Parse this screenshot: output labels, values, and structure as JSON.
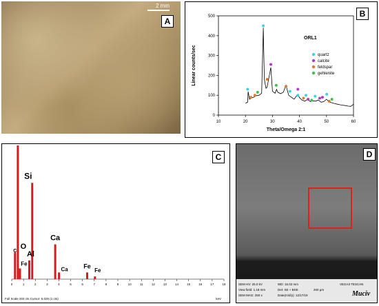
{
  "panels": {
    "a": {
      "label": "A",
      "scale_bar": "2 mm"
    },
    "b": {
      "label": "B",
      "sample": "ORL1"
    },
    "c": {
      "label": "C",
      "footer": "Full Scale 203 cts Cursor: 5.025 (1 cts)",
      "unit": "keV"
    },
    "d": {
      "label": "D",
      "info": {
        "hv": "SEM HV: 25.0 kV",
        "wd": "WD: 16.02 mm",
        "vega": "VEGA3 TESCAN",
        "view": "View field: 1.18 mm",
        "det": "Det: SE + BSE",
        "scale": "200 µm",
        "mag": "SEM MAG: 250 x",
        "date": "Date(m/d/y): 12/17/19",
        "logo": "Muciv"
      }
    }
  },
  "chart_data": [
    {
      "type": "line",
      "title": "ORL1",
      "xlabel": "Theta/Omega 2:1",
      "ylabel": "Linear counts/sec",
      "xlim": [
        10,
        60
      ],
      "ylim": [
        0,
        500
      ],
      "xticks": [
        10,
        20,
        30,
        40,
        50,
        60
      ],
      "yticks": [
        0,
        100,
        200,
        300,
        400,
        500
      ],
      "legend_position": "right",
      "legend": [
        {
          "name": "quartz",
          "color": "#39d5e0"
        },
        {
          "name": "calcite",
          "color": "#b23ac8"
        },
        {
          "name": "feldspar",
          "color": "#e07a2a"
        },
        {
          "name": "gehlenite",
          "color": "#3fbf4f"
        }
      ],
      "series": [
        {
          "x": [
            20,
            20.8,
            21,
            21.5,
            22,
            23,
            24,
            25,
            26,
            26.6,
            27,
            27.6,
            28,
            29.4,
            30,
            31,
            31.5,
            32,
            33,
            34,
            35,
            35.5,
            36,
            37,
            38,
            39.4,
            40,
            41,
            42,
            43,
            44,
            45,
            46,
            47,
            48,
            49,
            50,
            51,
            52,
            53,
            54,
            55,
            56,
            57,
            58,
            59,
            60
          ],
          "y": [
            60,
            65,
            118,
            80,
            85,
            90,
            98,
            100,
            110,
            440,
            180,
            135,
            140,
            240,
            120,
            110,
            130,
            115,
            108,
            115,
            150,
            125,
            100,
            90,
            80,
            105,
            88,
            75,
            70,
            80,
            68,
            72,
            70,
            76,
            65,
            68,
            80,
            66,
            62,
            58,
            55,
            52,
            50,
            48,
            45,
            44,
            55
          ]
        }
      ],
      "markers": [
        {
          "mineral": "quartz",
          "x": 20.8,
          "y": 130
        },
        {
          "mineral": "quartz",
          "x": 26.6,
          "y": 450
        },
        {
          "mineral": "quartz",
          "x": 36.5,
          "y": 120
        },
        {
          "mineral": "quartz",
          "x": 39.4,
          "y": 100
        },
        {
          "mineral": "quartz",
          "x": 42.4,
          "y": 100
        },
        {
          "mineral": "quartz",
          "x": 45.8,
          "y": 95
        },
        {
          "mineral": "quartz",
          "x": 50.1,
          "y": 105
        },
        {
          "mineral": "calcite",
          "x": 29.4,
          "y": 255
        },
        {
          "mineral": "calcite",
          "x": 39.4,
          "y": 130
        },
        {
          "mineral": "calcite",
          "x": 43.2,
          "y": 80
        },
        {
          "mineral": "calcite",
          "x": 47.5,
          "y": 85
        },
        {
          "mineral": "calcite",
          "x": 48.5,
          "y": 90
        },
        {
          "mineral": "feldspar",
          "x": 22,
          "y": 90
        },
        {
          "mineral": "feldspar",
          "x": 23.5,
          "y": 100
        },
        {
          "mineral": "feldspar",
          "x": 28,
          "y": 180
        },
        {
          "mineral": "feldspar",
          "x": 35,
          "y": 145
        },
        {
          "mineral": "feldspar",
          "x": 41.5,
          "y": 85
        },
        {
          "mineral": "feldspar",
          "x": 51,
          "y": 70
        },
        {
          "mineral": "gehlenite",
          "x": 24.5,
          "y": 115
        },
        {
          "mineral": "gehlenite",
          "x": 31.4,
          "y": 150
        },
        {
          "mineral": "gehlenite",
          "x": 44.5,
          "y": 75
        },
        {
          "mineral": "gehlenite",
          "x": 52,
          "y": 80
        }
      ]
    },
    {
      "type": "bar",
      "title": "",
      "xlabel": "keV",
      "ylabel": "",
      "xlim": [
        0,
        18
      ],
      "xticks": [
        0,
        1,
        2,
        3,
        4,
        5,
        6,
        7,
        8,
        9,
        10,
        11,
        12,
        13,
        14,
        15,
        16,
        17,
        18
      ],
      "ylim": [
        0,
        1.0
      ],
      "peaks": [
        {
          "x": 0.28,
          "y": 0.2,
          "label": "C"
        },
        {
          "x": 0.52,
          "y": 1.0,
          "label": "O"
        },
        {
          "x": 0.7,
          "y": 0.08,
          "label": "Fe"
        },
        {
          "x": 1.49,
          "y": 0.14,
          "label": "Al"
        },
        {
          "x": 1.74,
          "y": 0.72,
          "label": "Si"
        },
        {
          "x": 3.69,
          "y": 0.26,
          "label": "Ca"
        },
        {
          "x": 4.01,
          "y": 0.05,
          "label": "Ca"
        },
        {
          "x": 6.4,
          "y": 0.05,
          "label": "Fe"
        },
        {
          "x": 7.06,
          "y": 0.02,
          "label": "Fe"
        }
      ]
    }
  ]
}
